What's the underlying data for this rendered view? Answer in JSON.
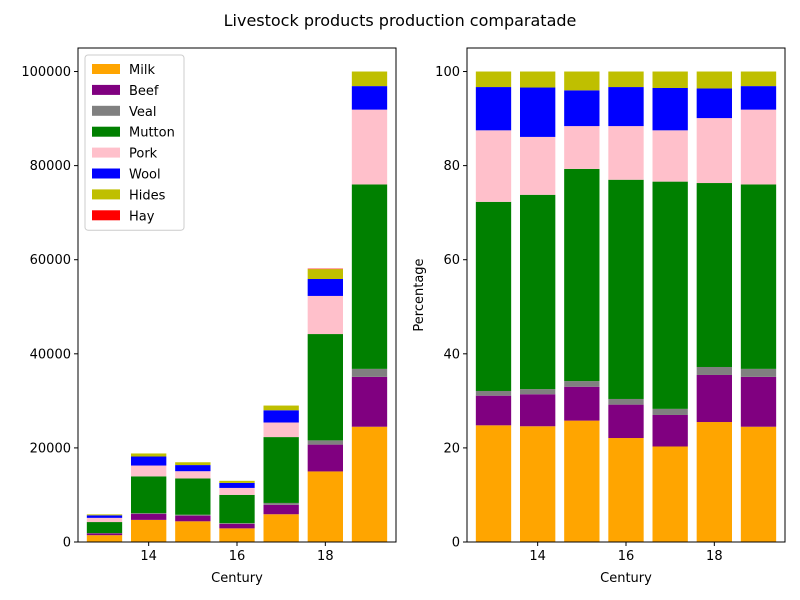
{
  "suptitle": "Livestock products production comparatade",
  "colors": {
    "Milk": "#ffa500",
    "Beef": "#800080",
    "Veal": "#808080",
    "Mutton": "#008000",
    "Pork": "#ffc0cb",
    "Wool": "#0000ff",
    "Hides": "#bfbf00",
    "Hay": "#ff0000"
  },
  "chart_data": [
    {
      "type": "bar",
      "stacked": true,
      "title": "",
      "xlabel": "Century",
      "ylabel": "",
      "x": [
        13,
        14,
        15,
        16,
        17,
        18,
        19
      ],
      "xticks": [
        14,
        16,
        18
      ],
      "yticks": [
        0,
        20000,
        40000,
        60000,
        80000,
        100000
      ],
      "ylim": [
        0,
        105000
      ],
      "xlim": [
        12.4,
        19.6
      ],
      "legend": "upper-left",
      "series": [
        {
          "name": "Milk",
          "values": [
            1450,
            4700,
            4400,
            2900,
            5900,
            15000,
            24500
          ]
        },
        {
          "name": "Beef",
          "values": [
            380,
            1250,
            1200,
            950,
            2000,
            5700,
            10600
          ]
        },
        {
          "name": "Veal",
          "values": [
            60,
            200,
            200,
            170,
            400,
            900,
            1700
          ]
        },
        {
          "name": "Mutton",
          "values": [
            2350,
            7800,
            7700,
            6000,
            14000,
            22600,
            39200
          ]
        },
        {
          "name": "Pork",
          "values": [
            890,
            2300,
            1550,
            1470,
            3100,
            8100,
            15900
          ]
        },
        {
          "name": "Wool",
          "values": [
            540,
            1920,
            1300,
            1070,
            2600,
            3600,
            5000
          ]
        },
        {
          "name": "Hides",
          "values": [
            200,
            650,
            600,
            440,
            1000,
            2100,
            3100
          ]
        },
        {
          "name": "Hay",
          "values": [
            0,
            0,
            0,
            0,
            0,
            100,
            0
          ]
        }
      ]
    },
    {
      "type": "bar",
      "stacked": true,
      "title": "",
      "xlabel": "Century",
      "ylabel": "Percentage",
      "x": [
        13,
        14,
        15,
        16,
        17,
        18,
        19
      ],
      "xticks": [
        14,
        16,
        18
      ],
      "yticks": [
        0,
        20,
        40,
        60,
        80,
        100
      ],
      "ylim": [
        0,
        105
      ],
      "xlim": [
        12.4,
        19.6
      ],
      "series": [
        {
          "name": "Milk",
          "values": [
            24.8,
            24.6,
            25.8,
            22.1,
            20.3,
            25.5,
            24.5
          ]
        },
        {
          "name": "Beef",
          "values": [
            6.3,
            6.8,
            7.2,
            7.1,
            6.7,
            10.0,
            10.6
          ]
        },
        {
          "name": "Veal",
          "values": [
            1.0,
            1.1,
            1.2,
            1.2,
            1.3,
            1.7,
            1.7
          ]
        },
        {
          "name": "Mutton",
          "values": [
            40.2,
            41.3,
            45.1,
            46.6,
            48.3,
            39.1,
            39.2
          ]
        },
        {
          "name": "Pork",
          "values": [
            15.2,
            12.3,
            9.1,
            11.4,
            10.9,
            13.8,
            15.9
          ]
        },
        {
          "name": "Wool",
          "values": [
            9.2,
            10.5,
            7.6,
            8.3,
            9.0,
            6.3,
            5.0
          ]
        },
        {
          "name": "Hides",
          "values": [
            3.3,
            3.4,
            4.0,
            3.3,
            3.5,
            3.6,
            3.1
          ]
        },
        {
          "name": "Hay",
          "values": [
            0,
            0,
            0,
            0,
            0,
            0,
            0
          ]
        }
      ]
    }
  ]
}
